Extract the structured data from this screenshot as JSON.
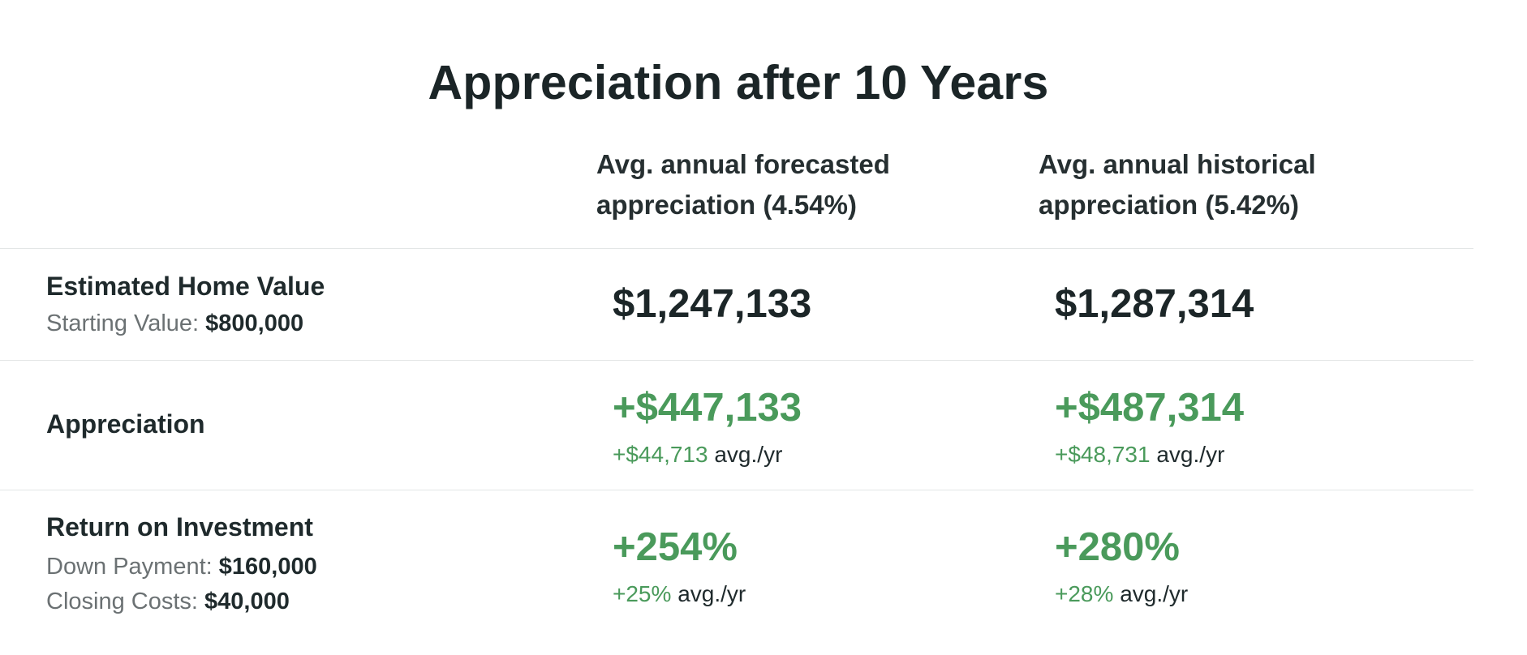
{
  "title": "Appreciation after 10 Years",
  "columns": [
    {
      "line1": "Avg. annual forecasted",
      "line2": "appreciation (4.54%)"
    },
    {
      "line1": "Avg. annual historical",
      "line2": "appreciation (5.42%)"
    }
  ],
  "rows": {
    "home_value": {
      "label": "Estimated Home Value",
      "sub_label": "Starting Value:",
      "sub_value": "$800,000",
      "forecasted": "$1,247,133",
      "historical": "$1,287,314"
    },
    "appreciation": {
      "label": "Appreciation",
      "forecasted": "+$447,133",
      "forecasted_avg": "+$44,713",
      "historical": "+$487,314",
      "historical_avg": "+$48,731",
      "avg_suffix": "avg./yr"
    },
    "roi": {
      "label": "Return on Investment",
      "down_payment_label": "Down Payment:",
      "down_payment_value": "$160,000",
      "closing_costs_label": "Closing Costs:",
      "closing_costs_value": "$40,000",
      "forecasted": "+254%",
      "forecasted_avg": "+25%",
      "historical": "+280%",
      "historical_avg": "+28%",
      "avg_suffix": "avg./yr"
    }
  },
  "colors": {
    "positive": "#4a9a5b",
    "text": "#1f2a2c",
    "muted": "#6b7173",
    "divider": "#e3e6e6"
  }
}
